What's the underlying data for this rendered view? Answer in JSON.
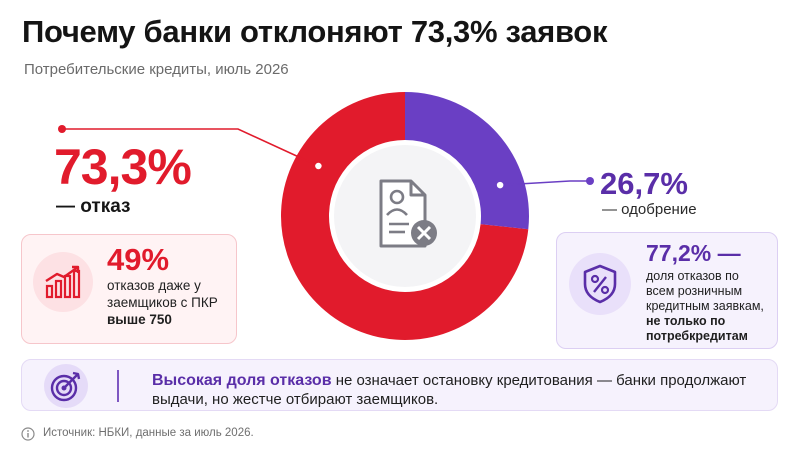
{
  "title": "Почему банки отклоняют 73,3% заявок",
  "subtitle": "Потребительские кредиты, июль 2026",
  "chart_data": {
    "type": "pie",
    "style": "donut",
    "categories": [
      "отказ",
      "одобрение"
    ],
    "values": [
      73.3,
      26.7
    ],
    "value_labels": [
      "73,3%",
      "26,7%"
    ],
    "label_prefix": "—",
    "colors": [
      "#e11b2c",
      "#6a3fc4"
    ]
  },
  "left_card": {
    "value": "49%",
    "line1": "отказов даже у",
    "line2": "заемщиков с ПКР",
    "line3": "выше 750",
    "icon": "growth-chart-icon"
  },
  "right_card": {
    "value": "77,2% —",
    "line1": "доля отказов по",
    "line2": "всем розничным",
    "line3": "кредитным заявкам,",
    "line4": "не только по",
    "line5": "потребкредитам",
    "icon": "percent-shield-icon"
  },
  "bottom_note": {
    "highlight": "Высокая доля отказов",
    "text": " не означает остановку кредитования — банки продолжают выдачи, но жестче отбирают заемщиков.",
    "icon": "target-icon"
  },
  "source": "Источник: НБКИ, данные за июль 2026.",
  "center_icon": "document-rejected-icon"
}
